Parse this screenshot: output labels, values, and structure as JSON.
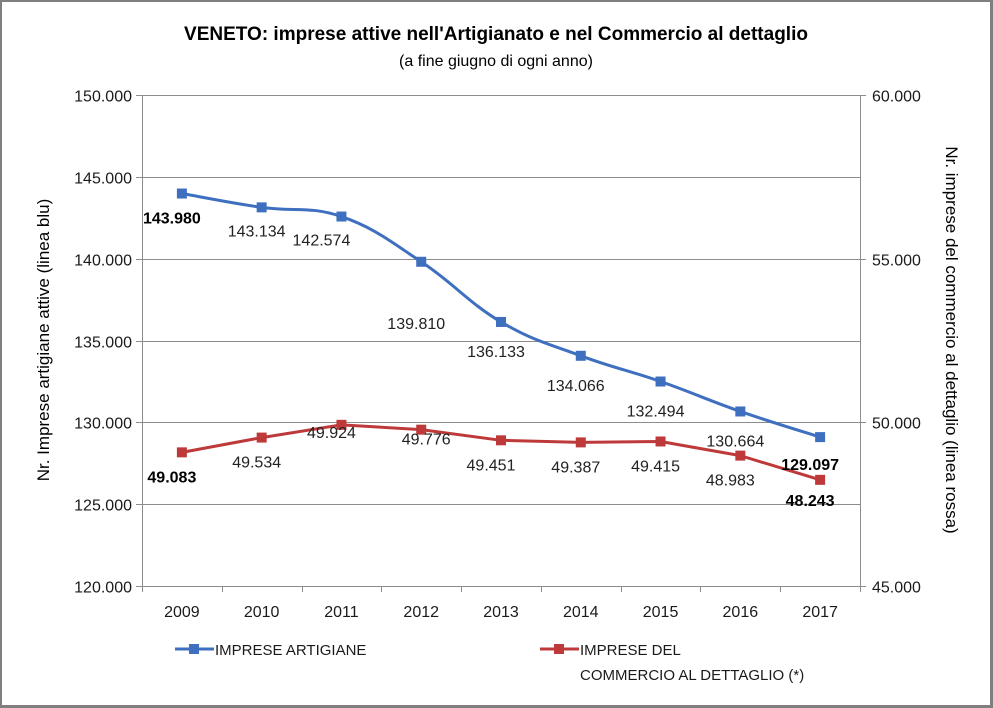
{
  "chart_data": {
    "type": "line",
    "title": "VENETO: imprese attive nell'Artigianato e nel Commercio al dettaglio",
    "subtitle": "(a fine giugno di ogni anno)",
    "categories": [
      "2009",
      "2010",
      "2011",
      "2012",
      "2013",
      "2014",
      "2015",
      "2016",
      "2017"
    ],
    "y_left": {
      "label": "Nr. Imprese artigiane attive (linea blu)",
      "range": [
        120000,
        150000
      ],
      "ticks": [
        120000,
        125000,
        130000,
        135000,
        140000,
        145000,
        150000
      ],
      "tick_labels": [
        "120.000",
        "125.000",
        "130.000",
        "135.000",
        "140.000",
        "145.000",
        "150.000"
      ]
    },
    "y_right": {
      "label": "Nr. imprese del commercio al dettaglio (linea rossa)",
      "range": [
        45000,
        60000
      ],
      "ticks": [
        45000,
        50000,
        55000,
        60000
      ],
      "tick_labels": [
        "45.000",
        "50.000",
        "55.000",
        "60.000"
      ]
    },
    "grid": true,
    "legend_position": "bottom",
    "series": [
      {
        "name": "IMPRESE ARTIGIANE",
        "axis": "left",
        "color": "#3f6fbf",
        "smooth": true,
        "values": [
          143980,
          143134,
          142574,
          139810,
          136133,
          134066,
          132494,
          130664,
          129097
        ],
        "labels": [
          "143.980",
          "143.134",
          "142.574",
          "139.810",
          "136.133",
          "134.066",
          "132.494",
          "130.664",
          "129.097"
        ],
        "bold_labels": [
          0,
          8
        ]
      },
      {
        "name": "IMPRESE DEL COMMERCIO AL DETTAGLIO (*)",
        "legend_lines": [
          "IMPRESE DEL",
          "COMMERCIO AL DETTAGLIO (*)"
        ],
        "axis": "right",
        "color": "#be3a3a",
        "smooth": false,
        "values": [
          49083,
          49534,
          49924,
          49776,
          49451,
          49387,
          49415,
          48983,
          48243
        ],
        "labels": [
          "49.083",
          "49.534",
          "49.924",
          "49.776",
          "49.451",
          "49.387",
          "49.415",
          "48.983",
          "48.243"
        ],
        "bold_labels": [
          0,
          8
        ]
      }
    ]
  }
}
